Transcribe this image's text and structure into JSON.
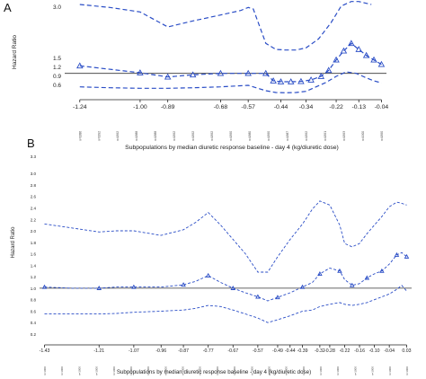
{
  "chart_data": [
    {
      "panel": "A",
      "type": "line",
      "ylabel": "Hazard Ratio",
      "xlabel": "",
      "ylim": [
        0.3,
        3.3
      ],
      "ytick_values": [
        0.6,
        0.9,
        1.2,
        1.5
      ],
      "ytick_labels": [
        "0.6",
        "0.9",
        "1.2",
        "1.5"
      ],
      "ytick_top_label": "3.0",
      "xtick_values": [
        -1.24,
        -1.0,
        -0.89,
        -0.68,
        -0.57,
        -0.44,
        -0.34,
        -0.22,
        -0.13,
        -0.04
      ],
      "xtick_labels": [
        "-1.24",
        "-1.00",
        "-0.89",
        "-0.68",
        "-0.57",
        "-0.44",
        "-0.34",
        "-0.22",
        "-0.13",
        "-0.04"
      ],
      "xlim": [
        -1.3,
        -0.02
      ],
      "reference_line": 1.0,
      "subpopulation_n_labels": [
        "n=1886",
        "n=1892",
        "n=1892",
        "n=1888",
        "n=1888",
        "n=1892",
        "n=1892",
        "n=1892",
        "n=1890",
        "n=1880",
        "n=1890",
        "n=1887",
        "n=1892",
        "n=1891",
        "n=1893",
        "n=1900",
        "n=1890"
      ],
      "series": [
        {
          "role": "estimate",
          "marker": "triangle",
          "style": "dashed",
          "x": [
            -1.24,
            -1.0,
            -0.89,
            -0.79,
            -0.68,
            -0.57,
            -0.5,
            -0.47,
            -0.44,
            -0.4,
            -0.36,
            -0.32,
            -0.28,
            -0.25,
            -0.22,
            -0.19,
            -0.16,
            -0.13,
            -0.1,
            -0.07,
            -0.04
          ],
          "y": [
            1.25,
            1.02,
            0.88,
            0.95,
            1.0,
            1.0,
            1.0,
            0.75,
            0.72,
            0.72,
            0.73,
            0.78,
            0.9,
            1.1,
            1.45,
            1.75,
            2.0,
            1.8,
            1.6,
            1.45,
            1.3
          ]
        },
        {
          "role": "upper CI",
          "marker": "none",
          "style": "dashed",
          "x": [
            -1.24,
            -1.12,
            -1.0,
            -0.89,
            -0.79,
            -0.68,
            -0.6,
            -0.57,
            -0.55,
            -0.5,
            -0.46,
            -0.42,
            -0.38,
            -0.34,
            -0.29,
            -0.24,
            -0.2,
            -0.16,
            -0.13,
            -0.08
          ],
          "y": [
            3.3,
            3.2,
            3.05,
            2.55,
            2.75,
            2.95,
            3.1,
            3.2,
            3.15,
            2.0,
            1.8,
            1.78,
            1.78,
            1.85,
            2.15,
            2.7,
            3.25,
            3.4,
            3.4,
            3.3
          ]
        },
        {
          "role": "lower CI",
          "marker": "none",
          "style": "dashed",
          "x": [
            -1.24,
            -1.12,
            -1.0,
            -0.89,
            -0.79,
            -0.68,
            -0.57,
            -0.5,
            -0.46,
            -0.42,
            -0.38,
            -0.34,
            -0.3,
            -0.26,
            -0.22,
            -0.18,
            -0.14,
            -0.1,
            -0.07,
            -0.04
          ],
          "y": [
            0.55,
            0.52,
            0.5,
            0.5,
            0.52,
            0.55,
            0.6,
            0.42,
            0.36,
            0.35,
            0.36,
            0.4,
            0.55,
            0.7,
            0.9,
            1.05,
            1.0,
            0.85,
            0.75,
            0.68
          ]
        }
      ]
    },
    {
      "panel": "B",
      "type": "line",
      "title": "Subpopulations by median diuretic response baseline - day 4 (kg/diuretic dose)",
      "xlabel": "Subpopulations by median diuretic response baseline - day 4 (kg/diuretic dose)",
      "ylabel": "Hazard Ratio",
      "ylim": [
        0.2,
        3.3
      ],
      "ytick_values": [
        0.2,
        0.4,
        0.6,
        0.8,
        1.0,
        1.2,
        1.4,
        1.6,
        1.8,
        2.0,
        2.2,
        2.4,
        2.6,
        2.8,
        3.0,
        3.3
      ],
      "ytick_labels": [
        "0.2",
        "0.4",
        "0.6",
        "0.8",
        "1.0",
        "1.2",
        "1.4",
        "1.6",
        "1.8",
        "2.0",
        "2.2",
        "2.4",
        "2.6",
        "2.8",
        "3.0",
        "3.3"
      ],
      "xtick_values": [
        -1.43,
        -1.21,
        -1.07,
        -0.96,
        -0.87,
        -0.77,
        -0.67,
        -0.57,
        -0.49,
        -0.44,
        -0.39,
        -0.32,
        -0.28,
        -0.22,
        -0.16,
        -0.1,
        -0.04,
        0.03
      ],
      "xtick_labels": [
        "-1.43",
        "-1.21",
        "-1.07",
        "-0.96",
        "-0.87",
        "-0.77",
        "-0.67",
        "-0.57",
        "-0.49",
        "-0.44",
        "-0.39",
        "-0.32",
        "-0.28",
        "-0.22",
        "-0.16",
        "-0.10",
        "-0.04",
        "0.03"
      ],
      "xlim": [
        -1.45,
        0.05
      ],
      "reference_line": 1.0,
      "subpopulation_n_labels": [
        "n=1000",
        "n=1000",
        "n=1000",
        "n=1000",
        "n=1000",
        "n=1000",
        "n=1000",
        "n=1000",
        "n=1000",
        "n=1000",
        "n=1000",
        "n=1000",
        "n=1000",
        "n=1000",
        "n=1000",
        "n=1000",
        "n=1000",
        "n=1000",
        "n=1000",
        "n=1000",
        "n=1000",
        "n=1000"
      ],
      "series": [
        {
          "role": "estimate",
          "marker": "triangle",
          "style": "dashed",
          "x": [
            -1.43,
            -1.32,
            -1.21,
            -1.14,
            -1.07,
            -0.96,
            -0.87,
            -0.82,
            -0.77,
            -0.72,
            -0.67,
            -0.62,
            -0.57,
            -0.53,
            -0.49,
            -0.44,
            -0.39,
            -0.35,
            -0.32,
            -0.28,
            -0.24,
            -0.22,
            -0.19,
            -0.16,
            -0.13,
            -0.1,
            -0.07,
            -0.04,
            -0.01,
            0.01,
            0.03
          ],
          "y": [
            1.02,
            1.0,
            1.0,
            1.02,
            1.02,
            1.02,
            1.06,
            1.12,
            1.22,
            1.1,
            1.0,
            0.92,
            0.85,
            0.78,
            0.84,
            0.92,
            1.02,
            1.1,
            1.25,
            1.35,
            1.3,
            1.15,
            1.05,
            1.08,
            1.18,
            1.25,
            1.3,
            1.42,
            1.58,
            1.62,
            1.55
          ]
        },
        {
          "role": "upper CI",
          "marker": "none",
          "style": "dashed",
          "x": [
            -1.43,
            -1.32,
            -1.21,
            -1.14,
            -1.07,
            -0.96,
            -0.87,
            -0.82,
            -0.77,
            -0.72,
            -0.67,
            -0.62,
            -0.57,
            -0.53,
            -0.49,
            -0.44,
            -0.39,
            -0.35,
            -0.32,
            -0.28,
            -0.24,
            -0.22,
            -0.19,
            -0.16,
            -0.13,
            -0.1,
            -0.07,
            -0.04,
            -0.01,
            0.01,
            0.03
          ],
          "y": [
            2.12,
            2.05,
            1.98,
            2.0,
            2.0,
            1.92,
            2.02,
            2.15,
            2.32,
            2.1,
            1.85,
            1.6,
            1.28,
            1.28,
            1.55,
            1.85,
            2.12,
            2.38,
            2.52,
            2.45,
            2.1,
            1.78,
            1.72,
            1.78,
            1.95,
            2.1,
            2.25,
            2.42,
            2.5,
            2.48,
            2.45
          ]
        },
        {
          "role": "lower CI",
          "marker": "none",
          "style": "dashed",
          "x": [
            -1.43,
            -1.32,
            -1.21,
            -1.14,
            -1.07,
            -0.96,
            -0.87,
            -0.82,
            -0.77,
            -0.72,
            -0.67,
            -0.62,
            -0.57,
            -0.53,
            -0.49,
            -0.44,
            -0.39,
            -0.35,
            -0.32,
            -0.28,
            -0.24,
            -0.22,
            -0.19,
            -0.16,
            -0.13,
            -0.1,
            -0.07,
            -0.04,
            -0.01,
            0.01,
            0.03
          ],
          "y": [
            0.55,
            0.55,
            0.55,
            0.56,
            0.58,
            0.6,
            0.62,
            0.65,
            0.7,
            0.68,
            0.62,
            0.55,
            0.48,
            0.4,
            0.45,
            0.52,
            0.6,
            0.62,
            0.68,
            0.72,
            0.75,
            0.72,
            0.7,
            0.72,
            0.75,
            0.8,
            0.85,
            0.9,
            0.98,
            1.05,
            0.95
          ]
        }
      ]
    }
  ]
}
